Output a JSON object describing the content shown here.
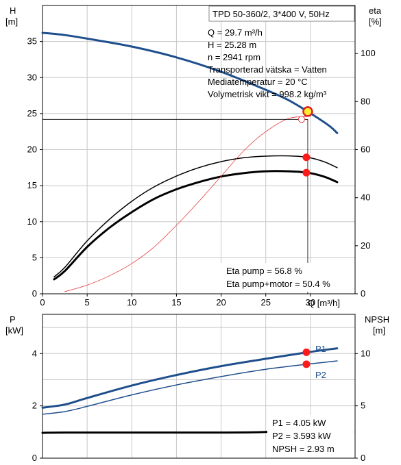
{
  "chart_data": [
    {
      "type": "line",
      "title": "TPD 50-360/2, 3*400 V, 50Hz",
      "left_axis": {
        "name": "H",
        "unit": "[m]",
        "ylim": [
          0,
          40
        ],
        "ticks": [
          "0",
          "5",
          "10",
          "15",
          "20",
          "25",
          "30",
          "35"
        ]
      },
      "right_axis": {
        "name": "eta",
        "unit": "[%]",
        "ylim": [
          0,
          120
        ],
        "ticks": [
          "0",
          "20",
          "40",
          "60",
          "80",
          "100"
        ]
      },
      "x_axis": {
        "label": "Q [m³/h]",
        "xlim": [
          0,
          35
        ],
        "ticks": [
          "0",
          "5",
          "10",
          "15",
          "20",
          "25",
          "30"
        ]
      },
      "info": [
        "Q = 29.7 m³/h",
        "H = 25.28 m",
        "n = 2941 rpm",
        "Transporterad vätska = Vatten",
        "Mediatemperatur = 20 °C",
        "Volymetrisk vikt = 998.2 kg/m³"
      ],
      "eta_info": [
        "Eta pump = 56.8 %",
        "Eta pump+motor = 50.4 %"
      ],
      "series": [
        {
          "axis": "left",
          "color": "#1f4e8c",
          "x": [
            0,
            2.5,
            5,
            10,
            15,
            20,
            25,
            27.5,
            29.7,
            32,
            33
          ],
          "y": [
            36.2,
            35.9,
            35.4,
            34.3,
            32.8,
            30.8,
            28.3,
            26.9,
            25.28,
            23.4,
            22.3
          ]
        },
        {
          "axis": "right",
          "color": "#000000",
          "width": 1.5,
          "x": [
            1.3,
            2.5,
            5,
            7.5,
            10,
            12.5,
            15,
            17.5,
            20,
            22.5,
            25,
            27.5,
            29.7,
            31.5,
            33
          ],
          "y": [
            7,
            11,
            22,
            31,
            38.5,
            44.5,
            49,
            52.5,
            55,
            56.6,
            57.3,
            57.4,
            56.8,
            55,
            52.5
          ]
        },
        {
          "axis": "right",
          "color": "#000000",
          "width": 3,
          "x": [
            1.3,
            2.5,
            5,
            7.5,
            10,
            12.5,
            15,
            17.5,
            20,
            22.5,
            25,
            27.5,
            29.7,
            31.5,
            33
          ],
          "y": [
            6,
            9.5,
            19.5,
            27.5,
            34,
            39.5,
            43.5,
            46.5,
            48.8,
            50.2,
            51,
            51,
            50.4,
            48.8,
            46.5
          ]
        },
        {
          "axis": "left",
          "color": "#e83a3a",
          "width": 0.8,
          "x": [
            2.5,
            5,
            7.5,
            10,
            12.5,
            15,
            17.5,
            20,
            22.5,
            25,
            27.5,
            29.7
          ],
          "y": [
            0.3,
            1.2,
            2.5,
            4.2,
            6.5,
            9.5,
            12.8,
            16.3,
            19.8,
            22.5,
            24.3,
            24.6
          ]
        }
      ],
      "op_point": {
        "x": 29.7,
        "y": 25.28,
        "eta_pump": 56.8,
        "eta_total": 50.4
      }
    },
    {
      "type": "line",
      "left_axis": {
        "name": "P",
        "unit": "[kW]",
        "ylim": [
          0,
          5.5
        ],
        "ticks": [
          "0",
          "2",
          "4"
        ]
      },
      "right_axis": {
        "name": "NPSH",
        "unit": "[m]",
        "ylim": [
          0,
          13.75
        ],
        "ticks": [
          "0",
          "5",
          "10"
        ]
      },
      "xlim": [
        0,
        35
      ],
      "info": [
        "P1 = 4.05 kW",
        "P2 = 3.593 kW",
        "NPSH = 2.93 m"
      ],
      "series": [
        {
          "name": "P1",
          "axis": "left",
          "color": "#1f4e8c",
          "width": 3,
          "x": [
            0,
            2.5,
            5,
            10,
            15,
            20,
            25,
            29.7,
            33
          ],
          "y": [
            1.93,
            2.05,
            2.3,
            2.78,
            3.18,
            3.52,
            3.8,
            4.05,
            4.2
          ]
        },
        {
          "name": "P2",
          "axis": "left",
          "color": "#1f4e8c",
          "width": 1.5,
          "x": [
            0,
            2.5,
            5,
            10,
            15,
            20,
            25,
            29.7,
            33
          ],
          "y": [
            1.68,
            1.78,
            1.98,
            2.42,
            2.8,
            3.12,
            3.4,
            3.593,
            3.72
          ]
        },
        {
          "name": "NPSH",
          "axis": "right",
          "color": "#000000",
          "width": 3,
          "x": [
            0,
            2.5,
            10,
            20,
            25,
            27.5,
            29.7
          ],
          "y": [
            2.42,
            2.45,
            2.45,
            2.45,
            2.5,
            2.65,
            2.93
          ]
        }
      ],
      "op_points": [
        {
          "x": 29.7,
          "y": 4.05
        },
        {
          "x": 29.7,
          "y": 3.593
        }
      ],
      "labels": [
        "P1",
        "P2"
      ]
    }
  ]
}
